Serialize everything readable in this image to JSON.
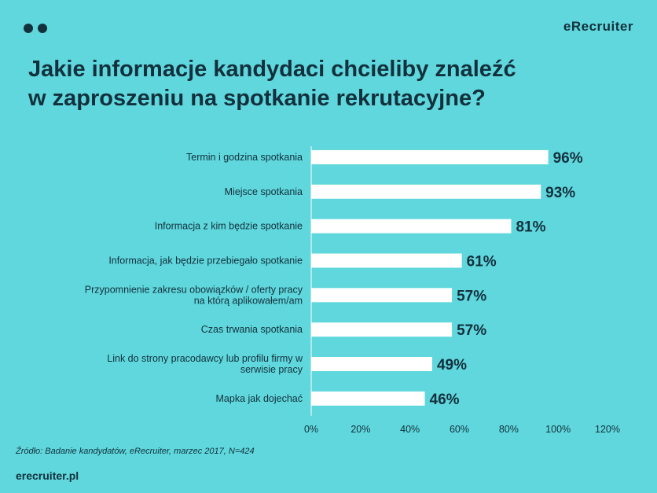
{
  "header": {
    "brand": "eRecruiter",
    "title_line1": "Jakie informacje kandydaci chcieliby znaleźć",
    "title_line2": "w zaproszeniu na spotkanie rekrutacyjne?"
  },
  "chart_data": {
    "type": "bar",
    "orientation": "horizontal",
    "categories": [
      [
        "Termin i godzina spotkania"
      ],
      [
        "Miejsce spotkania"
      ],
      [
        "Informacja z kim będzie spotkanie"
      ],
      [
        "Informacja, jak będzie przebiegało spotkanie"
      ],
      [
        "Przypomnienie zakresu obowiązków / oferty pracy",
        "na którą aplikowałem/am"
      ],
      [
        "Czas trwania spotkania"
      ],
      [
        "Link do strony pracodawcy lub profilu firmy w",
        "serwisie pracy"
      ],
      [
        "Mapka jak dojechać"
      ]
    ],
    "values": [
      96,
      93,
      81,
      61,
      57,
      57,
      49,
      46
    ],
    "value_labels": [
      "96%",
      "93%",
      "81%",
      "61%",
      "57%",
      "57%",
      "49%",
      "46%"
    ],
    "xlim": [
      0,
      120
    ],
    "xticks": [
      0,
      20,
      40,
      60,
      80,
      100,
      120
    ],
    "xtick_labels": [
      "0%",
      "20%",
      "40%",
      "60%",
      "80%",
      "100%",
      "120%"
    ],
    "grid": false,
    "bar_color": "#ffffff",
    "text_color": "#13303d"
  },
  "footer": {
    "source": "Źródło: Badanie kandydatów, eRecruiter, marzec 2017, N=424",
    "brand": "erecruiter.pl"
  }
}
